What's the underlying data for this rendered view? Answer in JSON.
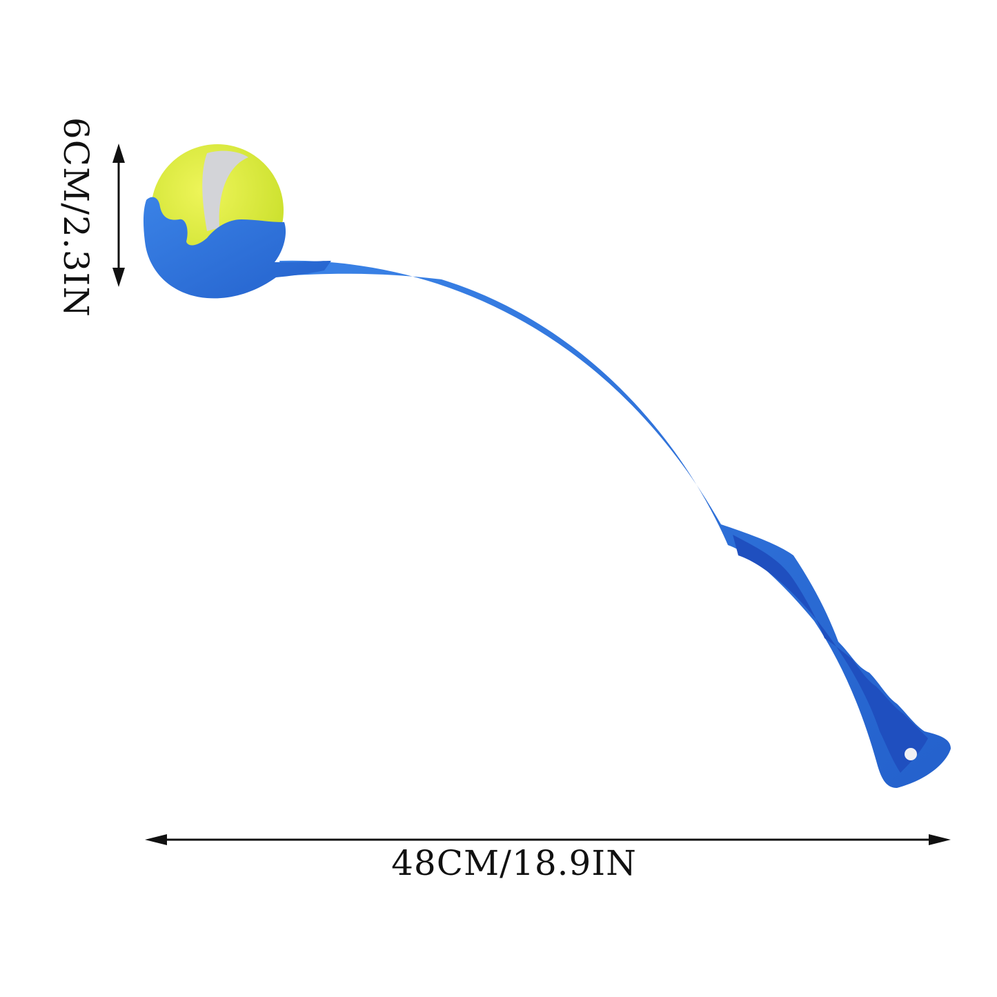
{
  "product": {
    "ball_color": "#d9ec3a",
    "ball_seam_color": "#d0d0d4",
    "launcher_color": "#2a6fd6",
    "grip_inset_color": "#1f4fbf"
  },
  "dimensions": {
    "height_label": "6CM/2.3IN",
    "length_label": "48CM/18.9IN"
  }
}
